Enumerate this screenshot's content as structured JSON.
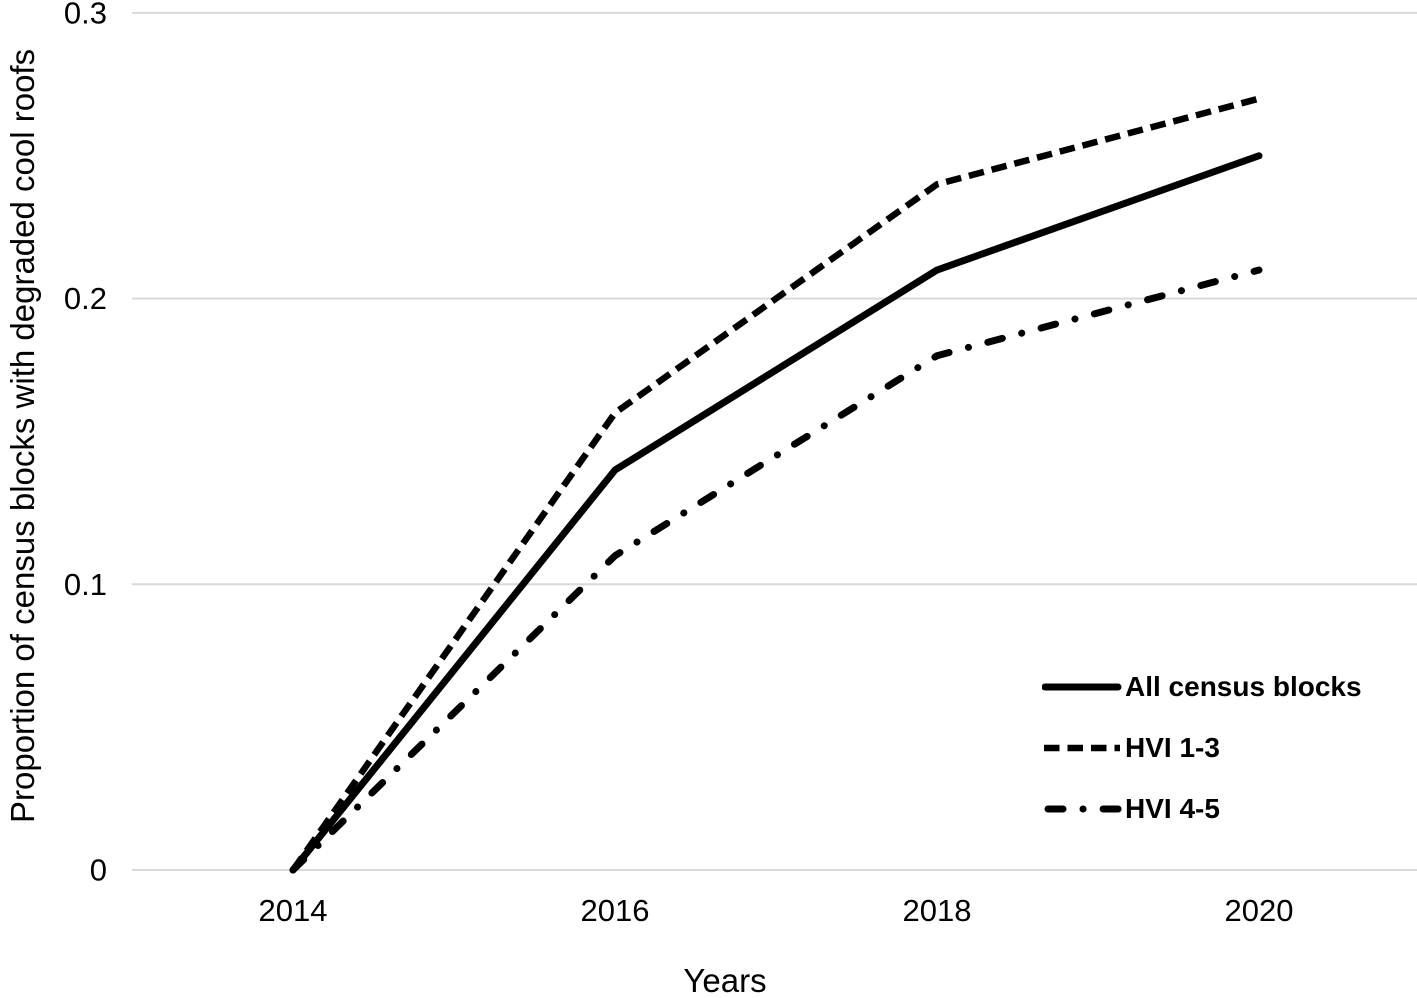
{
  "chart_data": {
    "type": "line",
    "title": "",
    "xlabel": "Years",
    "ylabel": "Proportion of census blocks with degraded cool roofs",
    "x": [
      2014,
      2016,
      2018,
      2020
    ],
    "x_tick_labels": [
      "2014",
      "2016",
      "2018",
      "2020"
    ],
    "yticks": [
      0,
      0.1,
      0.2,
      0.3
    ],
    "ytick_labels": [
      "0",
      "0.1",
      "0.2",
      "0.3"
    ],
    "ylim": [
      0,
      0.3
    ],
    "xlim": [
      2013,
      2021
    ],
    "grid": "horizontal",
    "legend_position": "inside-lower-right",
    "line_color": "#000000",
    "text_color": "#000000",
    "gridline_color": "#d9d9d9",
    "series": [
      {
        "name": "All census blocks",
        "style": "solid",
        "values": [
          0,
          0.14,
          0.21,
          0.25
        ]
      },
      {
        "name": "HVI 1-3",
        "style": "dashed",
        "values": [
          0,
          0.16,
          0.24,
          0.27
        ]
      },
      {
        "name": "HVI 4-5",
        "style": "dashdot",
        "values": [
          0,
          0.11,
          0.18,
          0.21
        ]
      }
    ]
  }
}
